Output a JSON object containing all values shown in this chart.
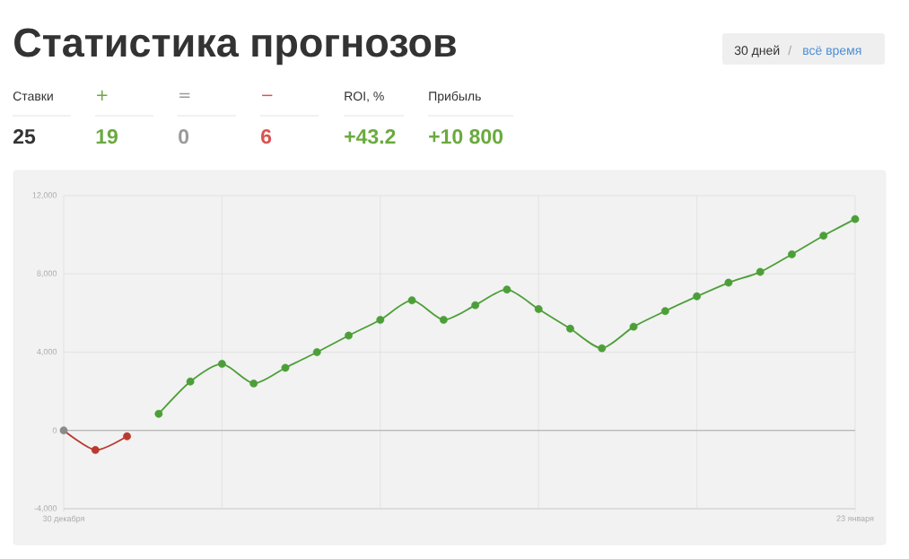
{
  "chart_data": {
    "type": "line",
    "title": "Статистика прогнозов",
    "annotations": [
      "30 дней",
      "/",
      "всё время",
      "Ставки",
      "25",
      "+",
      "19",
      "=",
      "0",
      "−",
      "6",
      "ROI, %",
      "+43.2",
      "Прибыль",
      "+10 800"
    ],
    "categories": [
      "30 декабря",
      null,
      null,
      null,
      null,
      null,
      null,
      null,
      null,
      null,
      null,
      null,
      null,
      null,
      null,
      null,
      null,
      null,
      null,
      null,
      null,
      null,
      null,
      null,
      null,
      "23 января"
    ],
    "ylim": [
      -4000,
      12000
    ],
    "yticks": [
      {
        "value": -4000,
        "label": "-4,000"
      },
      {
        "value": 0,
        "label": "0"
      },
      {
        "value": 4000,
        "label": "4,000"
      },
      {
        "value": 8000,
        "label": "8,000"
      },
      {
        "value": 12000,
        "label": "12,000"
      }
    ],
    "grid": true,
    "marker": "circle",
    "ref_lines": [
      {
        "axis": "y",
        "value": 0,
        "color": "#aaaaaa"
      }
    ],
    "series": [
      {
        "color": "#b83a30",
        "values": [
          0,
          -1000,
          -300,
          null,
          null,
          null,
          null,
          null,
          null,
          null,
          null,
          null,
          null,
          null,
          null,
          null,
          null,
          null,
          null,
          null,
          null,
          null,
          null,
          null,
          null,
          null
        ],
        "colors": [
          "#8a8a8a",
          "#b83a30",
          "#b83a30",
          null,
          null,
          null,
          null,
          null,
          null,
          null,
          null,
          null,
          null,
          null,
          null,
          null,
          null,
          null,
          null,
          null,
          null,
          null,
          null,
          null,
          null,
          null
        ]
      },
      {
        "color": "#4c9f38",
        "values": [
          null,
          null,
          null,
          850,
          2500,
          3400,
          2400,
          3200,
          4000,
          4850,
          5650,
          6650,
          5650,
          6400,
          7200,
          6200,
          5200,
          4200,
          5300,
          6100,
          6850,
          7550,
          8100,
          9000,
          9950,
          10800
        ],
        "colors": [
          null,
          null,
          null,
          "#4c9f38",
          "#4c9f38",
          "#4c9f38",
          "#4c9f38",
          "#4c9f38",
          "#4c9f38",
          "#4c9f38",
          "#4c9f38",
          "#4c9f38",
          "#4c9f38",
          "#4c9f38",
          "#4c9f38",
          "#4c9f38",
          "#4c9f38",
          "#4c9f38",
          "#4c9f38",
          "#4c9f38",
          "#4c9f38",
          "#4c9f38",
          "#4c9f38",
          "#4c9f38",
          "#4c9f38",
          "#4c9f38"
        ]
      }
    ]
  }
}
